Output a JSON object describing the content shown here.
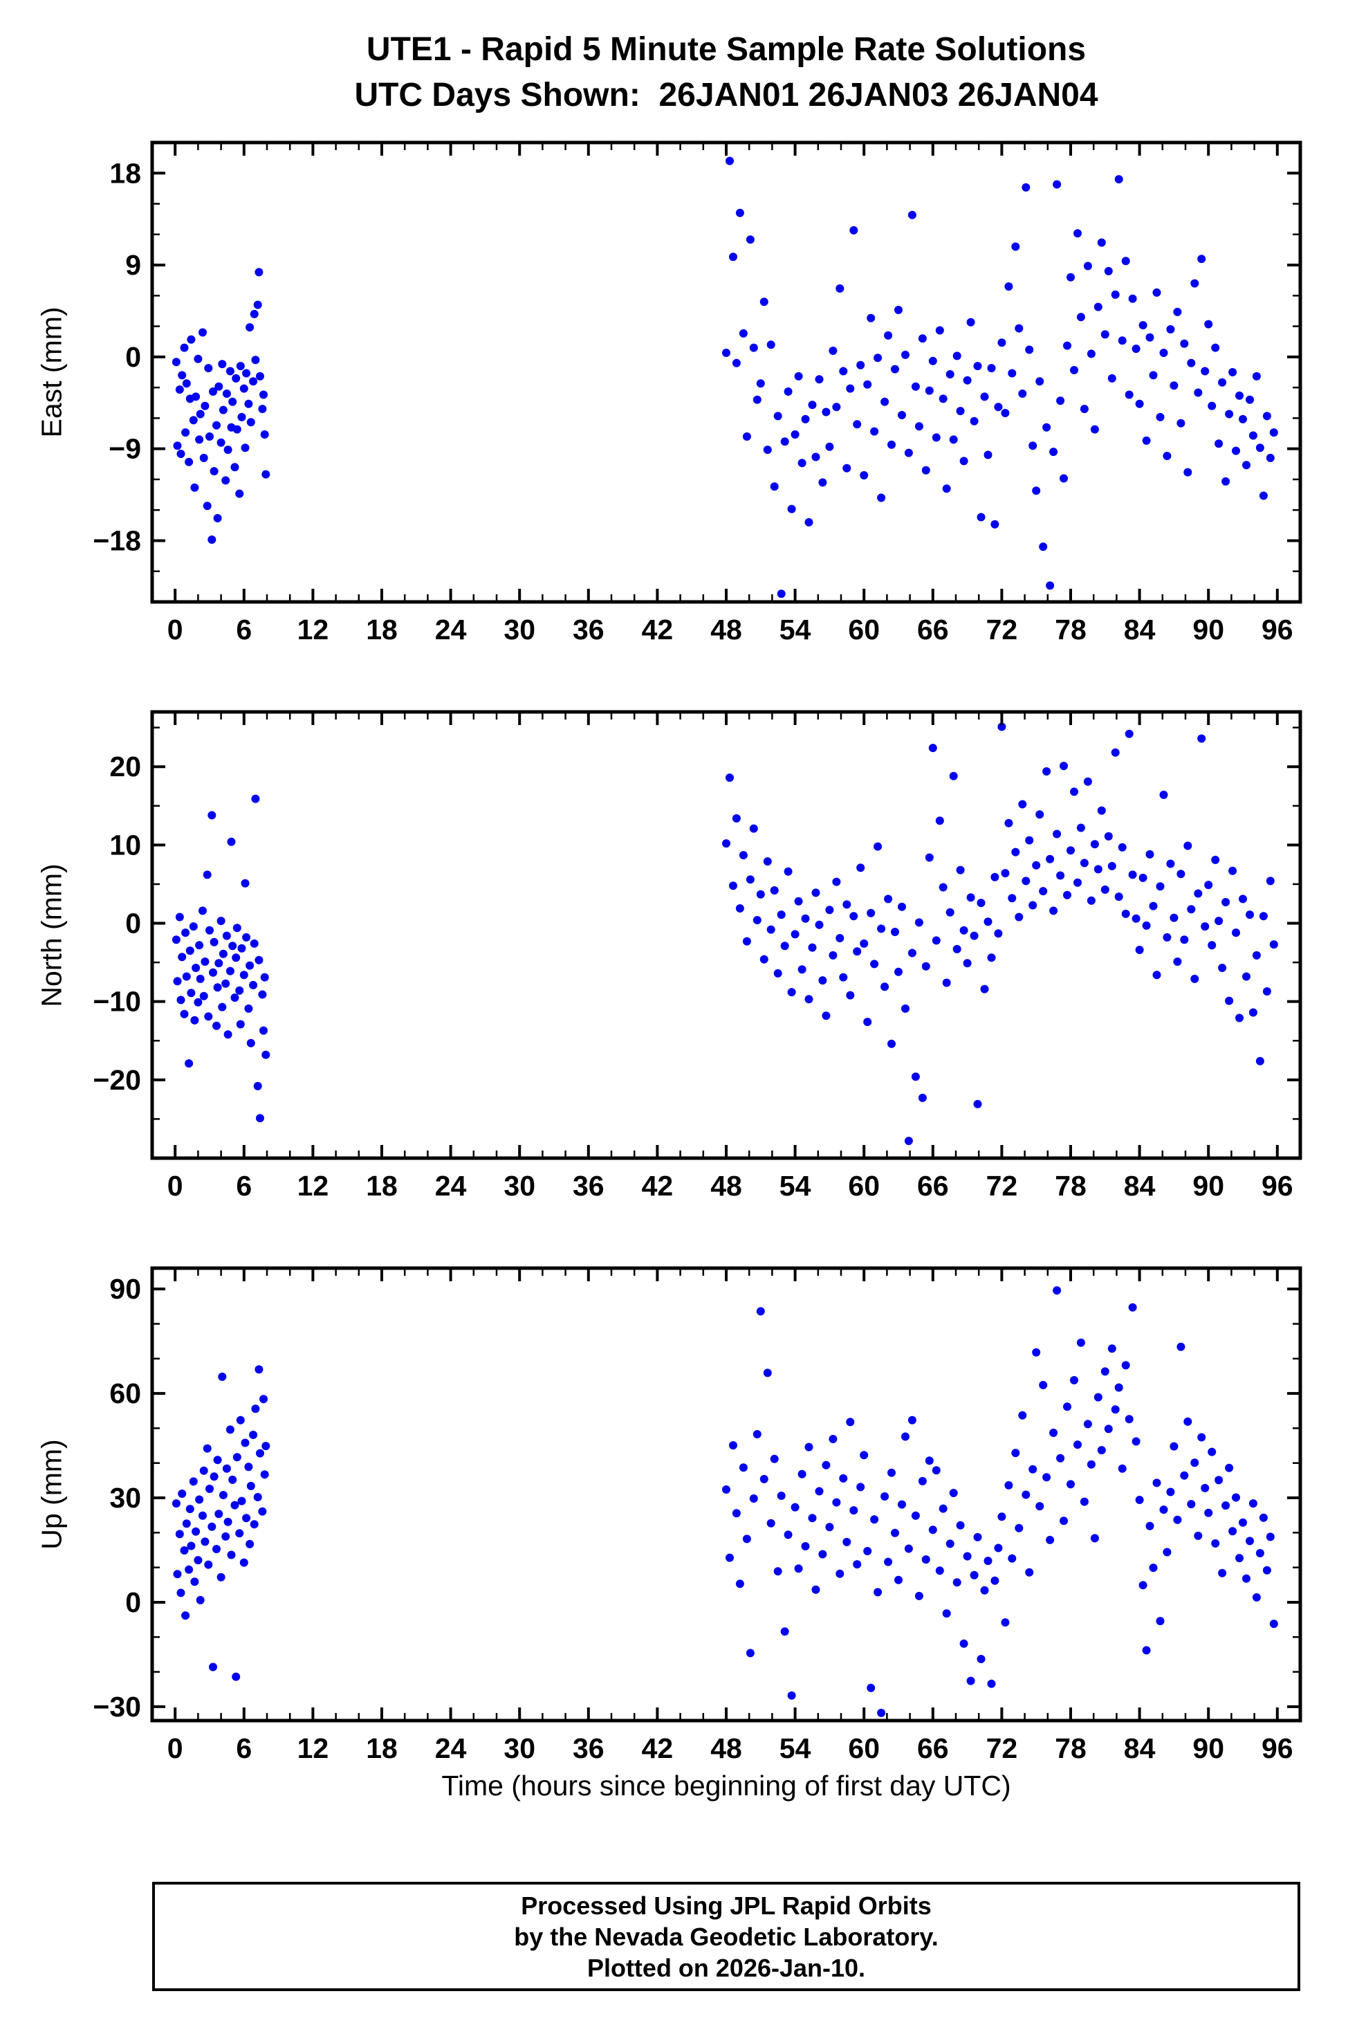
{
  "title_line1": "UTE1 - Rapid 5 Minute Sample Rate Solutions",
  "title_line2": "UTC Days Shown:  26JAN01 26JAN03 26JAN04",
  "xlabel": "Time (hours since beginning of first day UTC)",
  "footer": {
    "line1": "Processed Using JPL Rapid Orbits",
    "line2": "by the Nevada Geodetic Laboratory.",
    "line3": "Plotted on 2026-Jan-10."
  },
  "chart_data": {
    "type": "scatter",
    "marker_color": "#0000ee",
    "background": "#ffffff",
    "x_range": [
      -2,
      98
    ],
    "x_major": [
      0,
      6,
      12,
      18,
      24,
      30,
      36,
      42,
      48,
      54,
      60,
      66,
      72,
      78,
      84,
      90,
      96
    ],
    "x_minor_step": 2,
    "x": {
      "day1": [
        0.1,
        0.2,
        0.4,
        0.5,
        0.6,
        0.8,
        0.9,
        1.0,
        1.2,
        1.3,
        1.4,
        1.6,
        1.7,
        1.8,
        2.0,
        2.1,
        2.2,
        2.4,
        2.5,
        2.6,
        2.8,
        2.9,
        3.0,
        3.2,
        3.3,
        3.4,
        3.6,
        3.7,
        3.8,
        4.0,
        4.1,
        4.2,
        4.4,
        4.5,
        4.6,
        4.8,
        4.9,
        5.0,
        5.2,
        5.3,
        5.4,
        5.6,
        5.7,
        5.8,
        6.0,
        6.1,
        6.2,
        6.4,
        6.5,
        6.6,
        6.8,
        6.9,
        7.0,
        7.2,
        7.3,
        7.4,
        7.6,
        7.7,
        7.8,
        7.9
      ],
      "days34": [
        48.0,
        48.3,
        48.6,
        48.9,
        49.2,
        49.5,
        49.8,
        50.1,
        50.4,
        50.7,
        51.0,
        51.3,
        51.6,
        51.9,
        52.2,
        52.5,
        52.8,
        53.1,
        53.4,
        53.7,
        54.0,
        54.3,
        54.6,
        54.9,
        55.2,
        55.5,
        55.8,
        56.1,
        56.4,
        56.7,
        57.0,
        57.3,
        57.6,
        57.9,
        58.2,
        58.5,
        58.8,
        59.1,
        59.4,
        59.7,
        60.0,
        60.3,
        60.6,
        60.9,
        61.2,
        61.5,
        61.8,
        62.1,
        62.4,
        62.7,
        63.0,
        63.3,
        63.6,
        63.9,
        64.2,
        64.5,
        64.8,
        65.1,
        65.4,
        65.7,
        66.0,
        66.3,
        66.6,
        66.9,
        67.2,
        67.5,
        67.8,
        68.1,
        68.4,
        68.7,
        69.0,
        69.3,
        69.6,
        69.9,
        70.2,
        70.5,
        70.8,
        71.1,
        71.4,
        71.7,
        72.0,
        72.3,
        72.6,
        72.9,
        73.2,
        73.5,
        73.8,
        74.1,
        74.4,
        74.7,
        75.0,
        75.3,
        75.6,
        75.9,
        76.2,
        76.5,
        76.8,
        77.1,
        77.4,
        77.7,
        78.0,
        78.3,
        78.6,
        78.9,
        79.2,
        79.5,
        79.8,
        80.1,
        80.4,
        80.7,
        81.0,
        81.3,
        81.6,
        81.9,
        82.2,
        82.5,
        82.8,
        83.1,
        83.4,
        83.7,
        84.0,
        84.3,
        84.6,
        84.9,
        85.2,
        85.5,
        85.8,
        86.1,
        86.4,
        86.7,
        87.0,
        87.3,
        87.6,
        87.9,
        88.2,
        88.5,
        88.8,
        89.1,
        89.4,
        89.7,
        90.0,
        90.3,
        90.6,
        90.9,
        91.2,
        91.5,
        91.8,
        92.1,
        92.4,
        92.7,
        93.0,
        93.3,
        93.6,
        93.9,
        94.2,
        94.5,
        94.8,
        95.1,
        95.4,
        95.7
      ]
    },
    "panels": [
      {
        "name": "east",
        "ylabel": "East (mm)",
        "ylim": [
          -24,
          21
        ],
        "yticks": [
          -18,
          -9,
          0,
          9,
          18
        ],
        "y_minor_step": 3,
        "y_day1": [
          -0.5,
          -8.7,
          -3.2,
          -9.5,
          -1.8,
          0.9,
          -7.4,
          -2.6,
          -10.3,
          -4.1,
          1.7,
          -6.2,
          -12.8,
          -3.9,
          -0.2,
          -8.1,
          -5.6,
          2.4,
          -9.9,
          -4.8,
          -14.6,
          -1.1,
          -7.8,
          -17.9,
          -3.4,
          -11.2,
          -6.7,
          -15.8,
          -2.9,
          -8.4,
          -0.7,
          -5.2,
          -12.1,
          -3.6,
          -9.1,
          -1.4,
          -6.9,
          -4.4,
          -10.8,
          -2.1,
          -7.1,
          -13.4,
          -0.9,
          -5.9,
          -3.1,
          -8.9,
          -1.6,
          -4.6,
          2.9,
          -6.4,
          -2.4,
          4.2,
          -0.3,
          5.1,
          8.3,
          -1.9,
          -5.1,
          -3.7,
          -7.6,
          -11.5
        ],
        "y_days34": [
          0.4,
          19.2,
          9.8,
          -0.6,
          14.1,
          2.3,
          -7.8,
          11.5,
          0.9,
          -4.2,
          -2.6,
          5.4,
          -9.1,
          1.2,
          -12.7,
          -5.8,
          -23.2,
          -8.3,
          -3.4,
          -14.9,
          -7.6,
          -1.9,
          -10.4,
          -6.1,
          -16.2,
          -4.7,
          -9.8,
          -2.2,
          -12.3,
          -5.4,
          -8.8,
          0.6,
          -4.9,
          6.7,
          -1.4,
          -10.9,
          -3.1,
          12.4,
          -6.6,
          -0.8,
          -11.6,
          -2.7,
          3.8,
          -7.3,
          -0.1,
          -13.8,
          -4.4,
          2.1,
          -8.6,
          -1.2,
          4.6,
          -5.7,
          0.2,
          -9.4,
          13.9,
          -2.9,
          -6.8,
          1.8,
          -11.1,
          -3.3,
          -0.4,
          -7.9,
          2.6,
          -4.1,
          -12.9,
          -1.7,
          -8.1,
          0.1,
          -5.3,
          -10.2,
          -2.3,
          3.4,
          -6.3,
          -0.9,
          -15.7,
          -3.9,
          -9.6,
          -1.1,
          -16.4,
          -4.9,
          1.4,
          -5.5,
          6.9,
          -1.6,
          10.8,
          2.8,
          -3.6,
          16.6,
          0.7,
          -8.7,
          -13.1,
          -2.4,
          -18.6,
          -6.9,
          -22.4,
          -9.3,
          16.9,
          -4.3,
          -11.9,
          1.1,
          7.8,
          -1.3,
          12.1,
          3.9,
          -5.1,
          8.9,
          0.3,
          -7.1,
          4.9,
          11.2,
          2.2,
          8.4,
          -2.1,
          6.1,
          17.4,
          1.6,
          9.4,
          -3.7,
          5.7,
          0.8,
          -4.6,
          3.1,
          -8.2,
          1.9,
          -1.8,
          6.3,
          -5.9,
          0.4,
          -9.7,
          2.7,
          -2.8,
          4.4,
          -6.5,
          1.3,
          -11.3,
          -0.6,
          7.2,
          -3.5,
          9.6,
          -1.4,
          3.2,
          -4.8,
          0.9,
          -8.5,
          -2.5,
          -12.2,
          -5.6,
          -1.5,
          -9.2,
          -3.8,
          -6.1,
          -10.6,
          -4.2,
          -7.7,
          -1.9,
          -8.9,
          -13.6,
          -5.8,
          -9.9,
          -7.4
        ]
      },
      {
        "name": "north",
        "ylabel": "North (mm)",
        "ylim": [
          -30,
          27
        ],
        "yticks": [
          -20,
          -10,
          0,
          10,
          20
        ],
        "y_minor_step": 5,
        "y_day1": [
          -2.1,
          -7.4,
          0.8,
          -9.8,
          -4.3,
          -11.6,
          -1.2,
          -6.8,
          -17.9,
          -3.5,
          -8.9,
          -0.4,
          -12.4,
          -5.7,
          -10.1,
          -2.8,
          -7.1,
          1.6,
          -9.3,
          -4.9,
          6.2,
          -11.9,
          -0.9,
          13.8,
          -6.3,
          -2.4,
          -13.1,
          -8.2,
          -5.1,
          0.3,
          -10.7,
          -3.9,
          -7.7,
          -1.6,
          -14.2,
          -6.1,
          10.4,
          -2.9,
          -9.5,
          -4.4,
          -0.6,
          -8.6,
          -12.9,
          -3.2,
          -6.6,
          5.1,
          -1.8,
          -10.9,
          -5.4,
          -15.3,
          -7.9,
          -2.6,
          15.9,
          -20.8,
          -4.7,
          -24.9,
          -9.1,
          -13.7,
          -6.9,
          -16.8
        ],
        "y_days34": [
          10.2,
          18.6,
          4.8,
          13.4,
          1.9,
          8.7,
          -2.3,
          5.6,
          12.1,
          0.4,
          3.7,
          -4.6,
          7.9,
          -0.8,
          4.2,
          -6.4,
          1.1,
          -2.9,
          6.6,
          -8.8,
          -1.4,
          2.8,
          -5.9,
          0.6,
          -9.7,
          -3.1,
          3.9,
          -0.2,
          -7.3,
          -11.8,
          1.7,
          -4.1,
          5.3,
          -1.9,
          -6.9,
          2.4,
          -9.2,
          0.9,
          -3.6,
          7.1,
          -2.6,
          -12.6,
          1.3,
          -5.2,
          9.8,
          -0.7,
          -8.1,
          3.1,
          -15.4,
          -1.1,
          -6.2,
          2.1,
          -10.9,
          -27.8,
          -3.8,
          -19.6,
          0.1,
          -22.3,
          -5.5,
          8.4,
          22.4,
          -2.2,
          13.1,
          4.6,
          -7.6,
          1.4,
          18.8,
          -3.3,
          6.8,
          -0.9,
          -5.1,
          3.3,
          -1.6,
          -23.1,
          2.6,
          -8.4,
          0.2,
          -4.4,
          5.9,
          -1.3,
          25.1,
          6.4,
          12.8,
          3.2,
          9.1,
          0.8,
          15.2,
          5.4,
          10.6,
          2.3,
          7.4,
          13.9,
          4.1,
          19.4,
          8.2,
          1.6,
          11.4,
          6.1,
          20.1,
          3.6,
          9.3,
          16.8,
          5.2,
          12.2,
          7.7,
          18.1,
          2.9,
          10.1,
          6.9,
          14.4,
          4.3,
          11.1,
          7.3,
          21.8,
          3.4,
          9.7,
          1.2,
          24.2,
          6.2,
          0.6,
          -3.4,
          5.8,
          -0.3,
          8.8,
          2.2,
          -6.6,
          4.7,
          16.4,
          -1.8,
          7.6,
          0.7,
          -4.9,
          6.3,
          -2.1,
          9.9,
          1.8,
          -7.1,
          3.8,
          23.6,
          -0.4,
          4.9,
          -2.8,
          8.1,
          0.3,
          -5.7,
          2.7,
          -9.9,
          6.7,
          -1.2,
          -12.1,
          3.1,
          -6.8,
          1.1,
          -11.4,
          -4.1,
          -17.6,
          0.9,
          -8.7,
          5.4,
          -2.7
        ]
      },
      {
        "name": "up",
        "ylabel": "Up (mm)",
        "ylim": [
          -34,
          96
        ],
        "yticks": [
          -30,
          0,
          30,
          60,
          90
        ],
        "y_minor_step": 10,
        "y_day1": [
          28.4,
          8.1,
          19.6,
          2.7,
          31.2,
          14.9,
          -3.8,
          22.6,
          9.4,
          26.8,
          16.2,
          34.7,
          5.9,
          20.3,
          12.1,
          29.5,
          0.6,
          24.9,
          37.8,
          17.4,
          44.2,
          10.8,
          32.6,
          21.7,
          -18.6,
          36.1,
          15.3,
          40.9,
          25.4,
          7.2,
          64.8,
          30.8,
          18.9,
          38.4,
          23.1,
          49.6,
          13.6,
          35.2,
          27.9,
          -21.4,
          41.7,
          19.8,
          52.3,
          29.1,
          11.4,
          45.8,
          24.2,
          38.9,
          16.7,
          33.4,
          48.1,
          22.4,
          55.6,
          30.2,
          66.9,
          42.8,
          26.1,
          58.4,
          36.7,
          44.9
        ],
        "y_days34": [
          32.4,
          12.8,
          45.1,
          25.6,
          5.3,
          38.7,
          18.2,
          -14.6,
          29.8,
          48.3,
          83.6,
          35.4,
          65.9,
          22.7,
          41.2,
          8.9,
          30.6,
          -8.4,
          19.4,
          -26.8,
          27.3,
          9.7,
          36.8,
          16.1,
          44.6,
          24.2,
          3.6,
          31.9,
          13.8,
          39.4,
          21.6,
          46.9,
          28.7,
          8.2,
          35.6,
          17.3,
          51.8,
          26.4,
          10.9,
          33.1,
          42.3,
          14.7,
          -24.6,
          23.8,
          2.9,
          -31.8,
          30.4,
          11.6,
          37.2,
          19.9,
          6.4,
          28.1,
          47.6,
          15.4,
          52.3,
          24.9,
          1.8,
          34.8,
          12.3,
          40.7,
          20.8,
          37.9,
          9.1,
          26.9,
          -3.2,
          16.8,
          31.4,
          5.7,
          22.1,
          -11.9,
          13.2,
          -22.6,
          7.8,
          18.7,
          -16.3,
          3.4,
          11.9,
          -23.4,
          6.2,
          15.6,
          24.6,
          -5.8,
          33.6,
          12.6,
          42.9,
          21.3,
          53.7,
          30.9,
          8.6,
          38.2,
          71.8,
          27.6,
          62.4,
          35.9,
          17.9,
          48.7,
          89.6,
          41.4,
          23.4,
          56.2,
          33.9,
          63.8,
          45.3,
          74.6,
          28.9,
          51.2,
          39.6,
          18.4,
          58.9,
          43.7,
          66.3,
          49.8,
          72.9,
          55.4,
          61.7,
          38.4,
          68.1,
          52.6,
          84.7,
          46.2,
          29.4,
          4.9,
          -13.8,
          21.9,
          9.9,
          34.3,
          -5.4,
          26.6,
          14.4,
          31.7,
          44.8,
          23.7,
          73.4,
          36.4,
          51.9,
          28.2,
          40.1,
          19.1,
          47.4,
          32.8,
          25.7,
          43.2,
          16.9,
          35.1,
          8.4,
          27.8,
          38.6,
          20.4,
          30.1,
          12.7,
          22.9,
          6.8,
          17.6,
          28.4,
          1.4,
          14.1,
          24.3,
          9.2,
          18.8,
          -6.2
        ]
      }
    ]
  }
}
